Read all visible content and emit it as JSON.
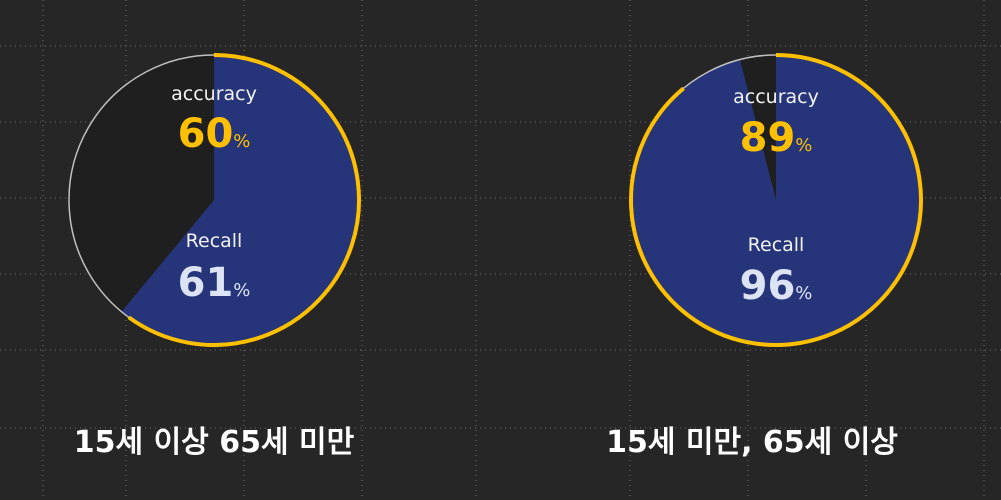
{
  "chart_data": [
    {
      "type": "pie",
      "title": "15세 이상 65세 미만",
      "accuracy": {
        "label": "accuracy",
        "value": 60,
        "unit": "%"
      },
      "recall": {
        "label": "Recall",
        "value": 61,
        "unit": "%"
      },
      "colors": {
        "recall_fill": "#26357a",
        "remainder_fill": "#1f1f1f",
        "accent_ring": "#ffc000",
        "outline": "#bfbfbf"
      }
    },
    {
      "type": "pie",
      "title": "15세 미만, 65세 이상",
      "accuracy": {
        "label": "accuracy",
        "value": 89,
        "unit": "%"
      },
      "recall": {
        "label": "Recall",
        "value": 96,
        "unit": "%"
      },
      "colors": {
        "recall_fill": "#26357a",
        "remainder_fill": "#1f1f1f",
        "accent_ring": "#ffc000",
        "outline": "#bfbfbf"
      }
    }
  ],
  "colors": {
    "background": "#262626",
    "grid": "#6e6e6e"
  }
}
